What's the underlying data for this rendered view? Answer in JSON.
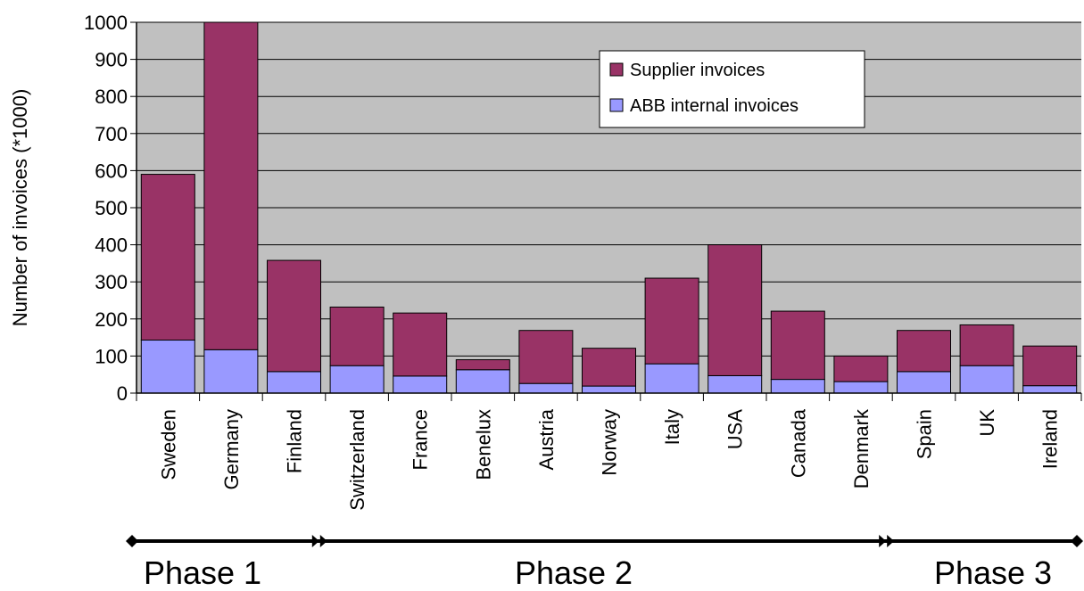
{
  "chart_data": {
    "type": "bar",
    "stacked": true,
    "categories": [
      "Sweden",
      "Germany",
      "Finland",
      "Switzerland",
      "France",
      "Benelux",
      "Austria",
      "Norway",
      "Italy",
      "USA",
      "Canada",
      "Denmark",
      "Spain",
      "UK",
      "Ireland"
    ],
    "series": [
      {
        "name": "ABB internal invoices",
        "color": "#9999ff",
        "values": [
          143,
          117,
          58,
          74,
          46,
          63,
          26,
          19,
          79,
          47,
          37,
          31,
          58,
          74,
          20
        ]
      },
      {
        "name": "Supplier invoices",
        "color": "#993366",
        "values": [
          447,
          903,
          300,
          158,
          170,
          27,
          143,
          102,
          231,
          353,
          184,
          69,
          111,
          110,
          107
        ]
      }
    ],
    "ylabel": "Number of invoices (*1000)",
    "ylim": [
      0,
      1000
    ],
    "yticks": [
      0,
      100,
      200,
      300,
      400,
      500,
      600,
      700,
      800,
      900,
      1000
    ],
    "grid": true,
    "plot_background": "#c0c0c0",
    "legend_position": "top-right",
    "phases": [
      {
        "label": "Phase 1",
        "from": "Sweden",
        "to": "Finland"
      },
      {
        "label": "Phase 2",
        "from": "Switzerland",
        "to": "Denmark"
      },
      {
        "label": "Phase 3",
        "from": "Spain",
        "to": "Ireland"
      }
    ]
  }
}
